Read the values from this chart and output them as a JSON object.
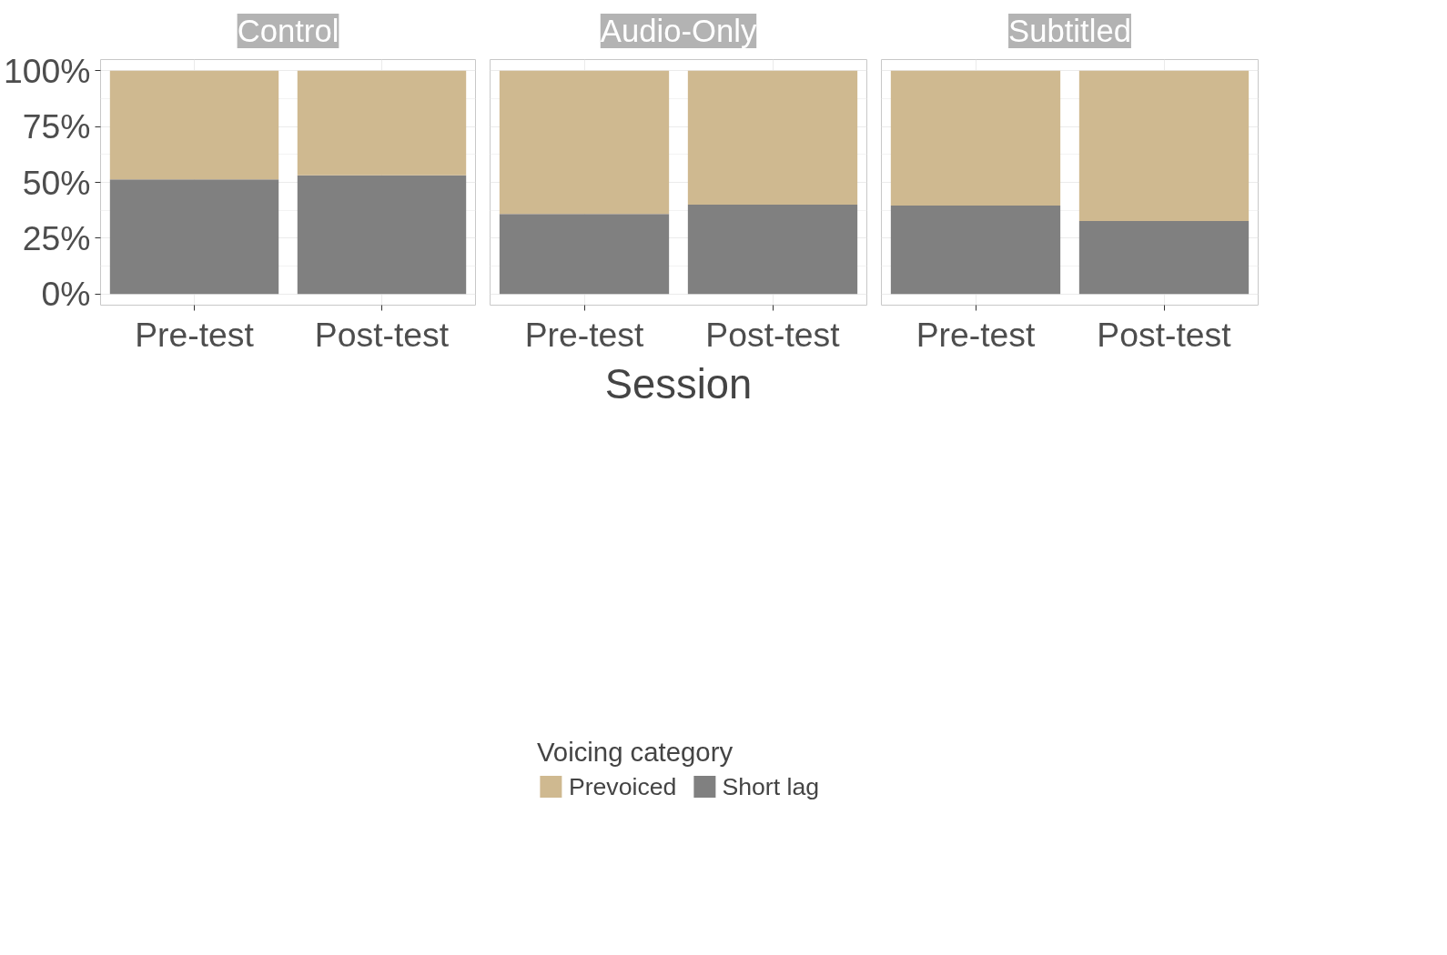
{
  "chart_data": [
    {
      "type": "bar",
      "title": "Control",
      "categories": [
        "Pre-test",
        "Post-test"
      ],
      "stacked": true,
      "series": [
        {
          "color": "#808080",
          "values": [
            51.3,
            53.2
          ]
        },
        {
          "color": "#cfb990",
          "values": [
            48.7,
            46.8
          ]
        }
      ],
      "ylim": [
        -5,
        105
      ],
      "yticks": [
        {
          "value": 0,
          "label": "0%"
        },
        {
          "value": 25,
          "label": "25%"
        },
        {
          "value": 50,
          "label": "50%"
        },
        {
          "value": 75,
          "label": "75%"
        },
        {
          "value": 100,
          "label": "100%"
        }
      ],
      "grid": true
    },
    {
      "type": "bar",
      "title": "Audio-Only",
      "categories": [
        "Pre-test",
        "Post-test"
      ],
      "stacked": true,
      "xlabel": "Session",
      "legend": "bottom",
      "legend_title": "Voicing category",
      "series": [
        {
          "name": "Short lag",
          "color": "#808080",
          "values": [
            35.8,
            40.0
          ]
        },
        {
          "name": "Prevoiced",
          "color": "#cfb990",
          "values": [
            64.2,
            60.0
          ]
        }
      ],
      "ylim": [
        -5,
        105
      ],
      "yticks": [
        0,
        25,
        50,
        75,
        100
      ],
      "grid": true,
      "tick_labels": "x"
    },
    {
      "type": "bar",
      "title": "Subtitled",
      "categories": [
        "Pre-test",
        "Post-test"
      ],
      "stacked": true,
      "series": [
        {
          "color": "#808080",
          "values": [
            39.6,
            32.7
          ]
        },
        {
          "color": "#cfb990",
          "values": [
            60.4,
            67.3
          ]
        }
      ],
      "ylim": [
        -5,
        105
      ],
      "yticks": [
        0,
        25,
        50,
        75,
        100
      ],
      "grid": true,
      "tick_labels": "x"
    }
  ]
}
